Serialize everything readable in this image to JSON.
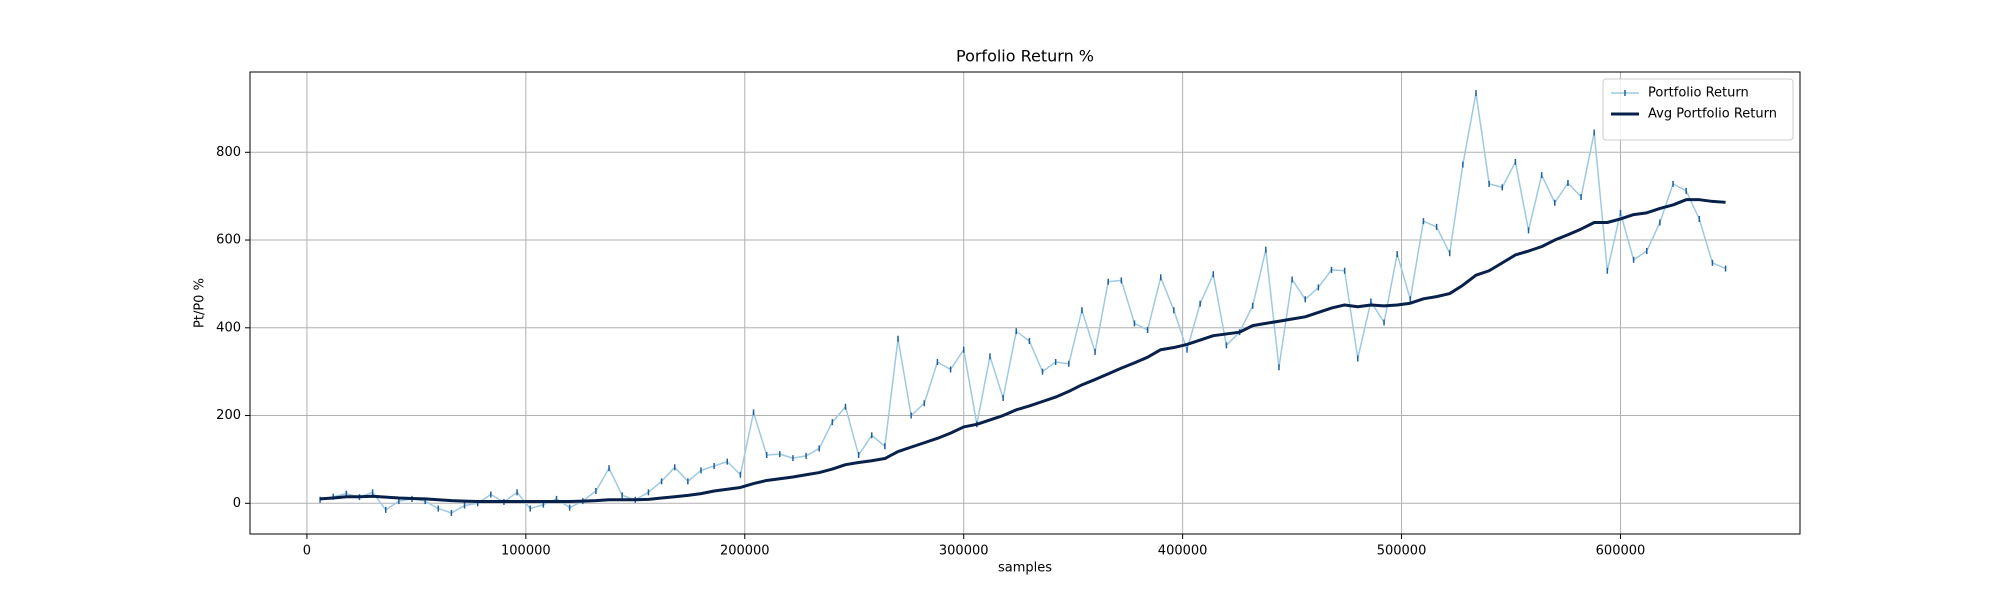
{
  "chart_data": {
    "type": "line",
    "title": "Porfolio Return %",
    "xlabel": "samples",
    "ylabel": "Pt/P0 %",
    "x": [
      6000,
      12000,
      18000,
      24000,
      30000,
      36000,
      42000,
      48000,
      54000,
      60000,
      66000,
      72000,
      78000,
      84000,
      90000,
      96000,
      102000,
      108000,
      114000,
      120000,
      126000,
      132000,
      138000,
      144000,
      150000,
      156000,
      162000,
      168000,
      174000,
      180000,
      186000,
      192000,
      198000,
      204000,
      210000,
      216000,
      222000,
      228000,
      234000,
      240000,
      246000,
      252000,
      258000,
      264000,
      270000,
      276000,
      282000,
      288000,
      294000,
      300000,
      306000,
      312000,
      318000,
      324000,
      330000,
      336000,
      342000,
      348000,
      354000,
      360000,
      366000,
      372000,
      378000,
      384000,
      390000,
      396000,
      402000,
      408000,
      414000,
      420000,
      426000,
      432000,
      438000,
      444000,
      450000,
      456000,
      462000,
      468000,
      474000,
      480000,
      486000,
      492000,
      498000,
      504000,
      510000,
      516000,
      522000,
      528000,
      534000,
      540000,
      546000,
      552000,
      558000,
      564000,
      570000,
      576000,
      582000,
      588000,
      594000,
      600000,
      606000,
      612000,
      618000,
      624000,
      630000,
      636000,
      642000,
      648000
    ],
    "series": [
      {
        "name": "Portfolio Return",
        "color": "#9ecae1",
        "marker_color": "#1f5f9f",
        "values": [
          8,
          15,
          22,
          14,
          25,
          -15,
          5,
          10,
          5,
          -12,
          -22,
          -5,
          0,
          20,
          3,
          25,
          -12,
          -3,
          10,
          -10,
          5,
          28,
          80,
          18,
          8,
          25,
          50,
          82,
          50,
          75,
          85,
          95,
          65,
          207,
          110,
          112,
          103,
          108,
          125,
          185,
          220,
          110,
          155,
          130,
          375,
          200,
          228,
          322,
          305,
          350,
          180,
          335,
          240,
          392,
          370,
          300,
          322,
          318,
          440,
          345,
          505,
          508,
          410,
          395,
          515,
          440,
          350,
          455,
          522,
          360,
          390,
          450,
          578,
          310,
          510,
          465,
          492,
          532,
          530,
          330,
          460,
          412,
          568,
          465,
          643,
          630,
          570,
          772,
          935,
          728,
          720,
          778,
          622,
          748,
          685,
          730,
          698,
          845,
          530,
          662,
          555,
          575,
          640,
          728,
          712,
          648,
          548,
          535
        ]
      },
      {
        "name": "Avg Portfolio Return",
        "color": "#08214a",
        "values": [
          10,
          12,
          15,
          15,
          16,
          14,
          12,
          11,
          10,
          8,
          6,
          5,
          4,
          4,
          4,
          4,
          4,
          4,
          4,
          4,
          5,
          6,
          8,
          8,
          8,
          9,
          12,
          15,
          18,
          22,
          28,
          32,
          36,
          45,
          52,
          56,
          60,
          65,
          70,
          78,
          88,
          93,
          97,
          102,
          118,
          128,
          138,
          148,
          160,
          174,
          180,
          190,
          200,
          213,
          222,
          232,
          242,
          255,
          270,
          282,
          295,
          308,
          320,
          333,
          350,
          355,
          362,
          372,
          382,
          386,
          390,
          405,
          410,
          415,
          420,
          425,
          435,
          445,
          452,
          448,
          452,
          450,
          452,
          456,
          466,
          471,
          478,
          497,
          520,
          530,
          548,
          566,
          575,
          585,
          600,
          612,
          625,
          640,
          640,
          648,
          658,
          662,
          672,
          680,
          692,
          692,
          688,
          686
        ]
      }
    ],
    "xlim": [
      -26000,
      682000
    ],
    "ylim": [
      -70,
      983
    ],
    "xticks": [
      0,
      100000,
      200000,
      300000,
      400000,
      500000,
      600000
    ],
    "yticks": [
      0,
      200,
      400,
      600,
      800
    ],
    "grid": true,
    "legend": "upper right"
  }
}
